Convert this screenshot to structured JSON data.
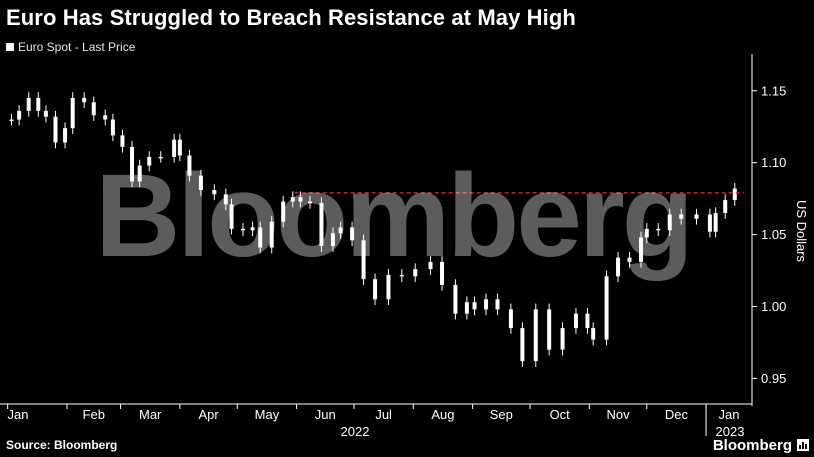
{
  "header": {
    "title": "Euro Has Struggled to Breach Resistance at May High",
    "legend_label": "Euro Spot - Last Price"
  },
  "footer": {
    "source": "Source: Bloomberg",
    "brand": "Bloomberg"
  },
  "watermark": "Bloomberg",
  "colors": {
    "background": "#000000",
    "candles": "#ffffff",
    "resistance_line": "#e0303a",
    "axis": "#ffffff"
  },
  "chart_data": {
    "type": "candlestick",
    "title": "Euro Has Struggled to Breach Resistance at May High",
    "ylabel": "US Dollars",
    "ylim": [
      0.935,
      1.17
    ],
    "y_axis_position": "right",
    "y_ticks": [
      0.95,
      1.0,
      1.05,
      1.1,
      1.15
    ],
    "y_tick_labels": [
      "0.95",
      "1.00",
      "1.05",
      "1.10",
      "1.15"
    ],
    "x_tick_labels": [
      "Jan",
      "Feb",
      "Mar",
      "Apr",
      "May",
      "Jun",
      "Jul",
      "Aug",
      "Sep",
      "Oct",
      "Nov",
      "Dec",
      "Jan"
    ],
    "year_labels": [
      "2022",
      "2023"
    ],
    "grid": false,
    "legend_position": "top-left",
    "series": [
      {
        "name": "Euro Spot - Last Price",
        "x": [
          "2022-01-03",
          "2022-01-07",
          "2022-01-12",
          "2022-01-17",
          "2022-01-21",
          "2022-01-26",
          "2022-01-31",
          "2022-02-04",
          "2022-02-10",
          "2022-02-15",
          "2022-02-21",
          "2022-02-25",
          "2022-03-02",
          "2022-03-07",
          "2022-03-11",
          "2022-03-16",
          "2022-03-22",
          "2022-03-29",
          "2022-04-01",
          "2022-04-06",
          "2022-04-12",
          "2022-04-19",
          "2022-04-25",
          "2022-04-28",
          "2022-05-04",
          "2022-05-09",
          "2022-05-13",
          "2022-05-19",
          "2022-05-25",
          "2022-05-30",
          "2022-06-03",
          "2022-06-08",
          "2022-06-14",
          "2022-06-20",
          "2022-06-24",
          "2022-06-30",
          "2022-07-06",
          "2022-07-12",
          "2022-07-19",
          "2022-07-26",
          "2022-08-02",
          "2022-08-10",
          "2022-08-16",
          "2022-08-23",
          "2022-08-29",
          "2022-09-02",
          "2022-09-08",
          "2022-09-14",
          "2022-09-21",
          "2022-09-27",
          "2022-10-04",
          "2022-10-11",
          "2022-10-18",
          "2022-10-25",
          "2022-10-31",
          "2022-11-03",
          "2022-11-10",
          "2022-11-16",
          "2022-11-22",
          "2022-11-28",
          "2022-12-01",
          "2022-12-07",
          "2022-12-13",
          "2022-12-19",
          "2022-12-27",
          "2023-01-03",
          "2023-01-06",
          "2023-01-11",
          "2023-01-16"
        ],
        "values": [
          1.13,
          1.136,
          1.145,
          1.136,
          1.132,
          1.114,
          1.124,
          1.145,
          1.142,
          1.133,
          1.13,
          1.119,
          1.111,
          1.087,
          1.098,
          1.104,
          1.104,
          1.116,
          1.105,
          1.091,
          1.081,
          1.078,
          1.071,
          1.054,
          1.053,
          1.055,
          1.041,
          1.059,
          1.073,
          1.076,
          1.073,
          1.072,
          1.042,
          1.051,
          1.055,
          1.046,
          1.019,
          1.005,
          1.022,
          1.021,
          1.026,
          1.031,
          1.015,
          0.995,
          1.003,
          0.998,
          1.005,
          0.998,
          0.985,
          0.962,
          0.998,
          0.97,
          0.985,
          0.995,
          0.985,
          0.977,
          1.021,
          1.034,
          1.031,
          1.048,
          1.054,
          1.053,
          1.064,
          1.061,
          1.064,
          1.052,
          1.065,
          1.074,
          1.082
        ]
      }
    ],
    "annotations": [
      {
        "type": "horizontal_line",
        "y": 1.079,
        "style": "dashed",
        "color": "#e0303a",
        "label": ""
      }
    ]
  }
}
